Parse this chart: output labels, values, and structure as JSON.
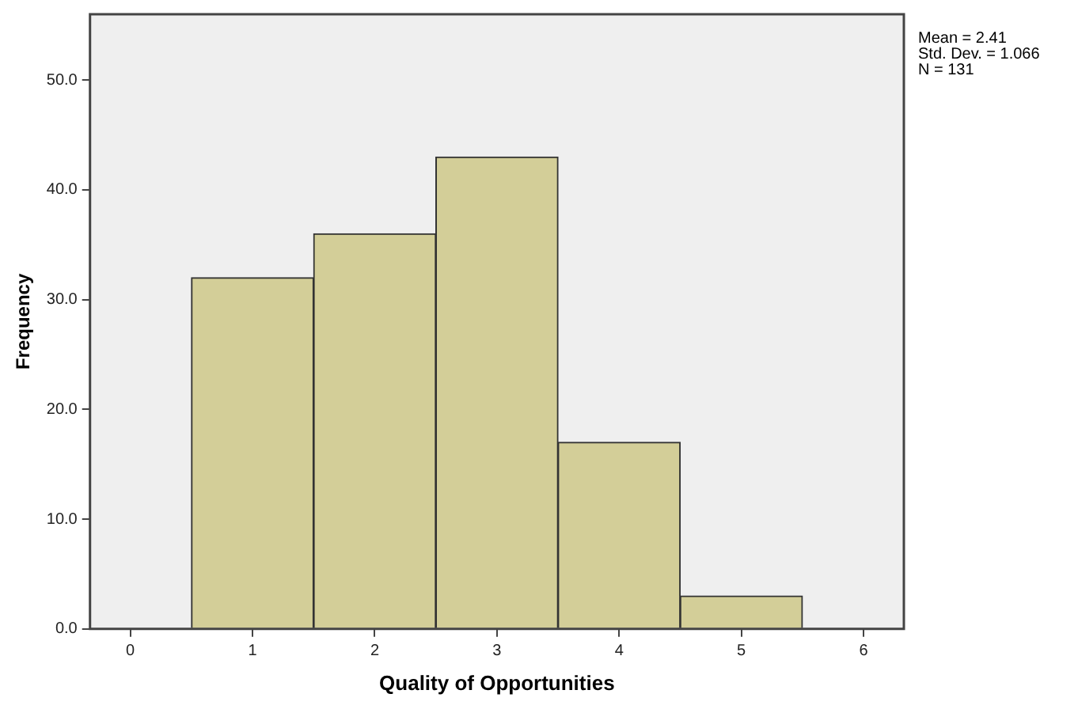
{
  "chart_data": {
    "type": "histogram",
    "bins": [
      0.5,
      1.5,
      2.5,
      3.5,
      4.5,
      5.5
    ],
    "values": [
      32,
      36,
      43,
      17,
      3
    ],
    "color": "#d3ce98",
    "xlabel": "Quality of Opportunities",
    "ylabel": "Frequency",
    "xlim": [
      -0.33,
      6.33
    ],
    "xticks": [
      0,
      1,
      2,
      3,
      4,
      5,
      6
    ],
    "ylim": [
      0,
      56
    ],
    "yticks": [
      {
        "value": 0,
        "label": "0.0"
      },
      {
        "value": 10,
        "label": "10.0"
      },
      {
        "value": 20,
        "label": "20.0"
      },
      {
        "value": 30,
        "label": "30.0"
      },
      {
        "value": 40,
        "label": "40.0"
      },
      {
        "value": 50,
        "label": "50.0"
      }
    ],
    "grid": false,
    "legend": false,
    "annotations": [
      "Mean = 2.41",
      "Std. Dev. = 1.066",
      "N = 131"
    ]
  }
}
